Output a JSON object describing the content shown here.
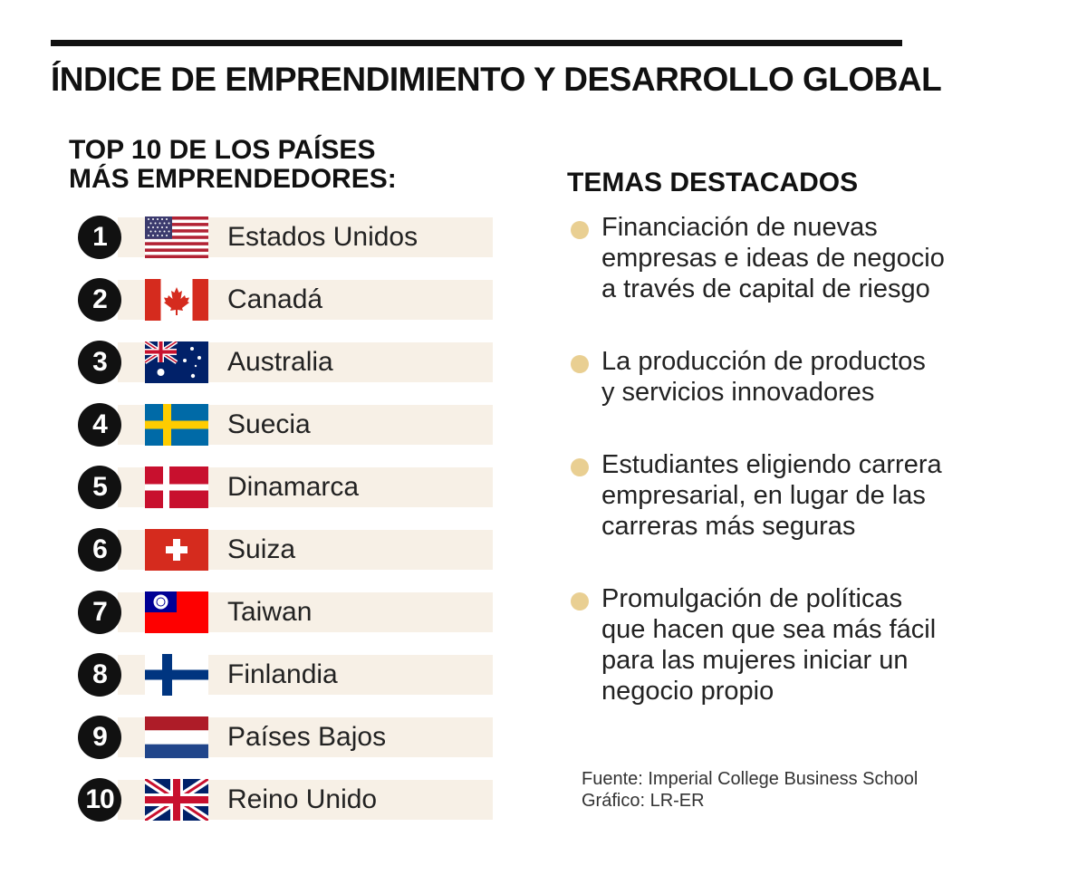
{
  "header": {
    "title": "ÍNDICE DE EMPRENDIMIENTO Y DESARROLLO GLOBAL"
  },
  "ranking": {
    "heading_line1": "TOP 10 DE LOS PAÍSES",
    "heading_line2": "MÁS EMPRENDEDORES:",
    "items": [
      {
        "rank": "1",
        "country": "Estados Unidos",
        "flag_icon": "usa-flag-icon"
      },
      {
        "rank": "2",
        "country": "Canadá",
        "flag_icon": "canada-flag-icon"
      },
      {
        "rank": "3",
        "country": "Australia",
        "flag_icon": "australia-flag-icon"
      },
      {
        "rank": "4",
        "country": "Suecia",
        "flag_icon": "sweden-flag-icon"
      },
      {
        "rank": "5",
        "country": "Dinamarca",
        "flag_icon": "denmark-flag-icon"
      },
      {
        "rank": "6",
        "country": "Suiza",
        "flag_icon": "switzerland-flag-icon"
      },
      {
        "rank": "7",
        "country": "Taiwan",
        "flag_icon": "taiwan-flag-icon"
      },
      {
        "rank": "8",
        "country": "Finlandia",
        "flag_icon": "finland-flag-icon"
      },
      {
        "rank": "9",
        "country": "Países Bajos",
        "flag_icon": "netherlands-flag-icon"
      },
      {
        "rank": "10",
        "country": "Reino Unido",
        "flag_icon": "uk-flag-icon"
      }
    ]
  },
  "topics": {
    "heading": "TEMAS DESTACADOS",
    "items": [
      {
        "lines": [
          "Financiación de nuevas",
          "empresas e ideas de negocio",
          "a través de capital de riesgo"
        ]
      },
      {
        "lines": [
          "La producción de productos",
          "y servicios innovadores"
        ]
      },
      {
        "lines": [
          "Estudiantes eligiendo carrera",
          "empresarial, en lugar de las",
          "carreras más seguras"
        ]
      },
      {
        "lines": [
          "Promulgación de políticas",
          "que hacen que sea más fácil",
          "para las mujeres iniciar un",
          "negocio propio"
        ]
      }
    ]
  },
  "source": {
    "line1": "Fuente: Imperial College Business School",
    "line2": "Gráfico: LR-ER"
  },
  "colors": {
    "bar_background": "#f7f0e6",
    "bullet": "#e9cf92",
    "rank_circle": "#111111"
  }
}
